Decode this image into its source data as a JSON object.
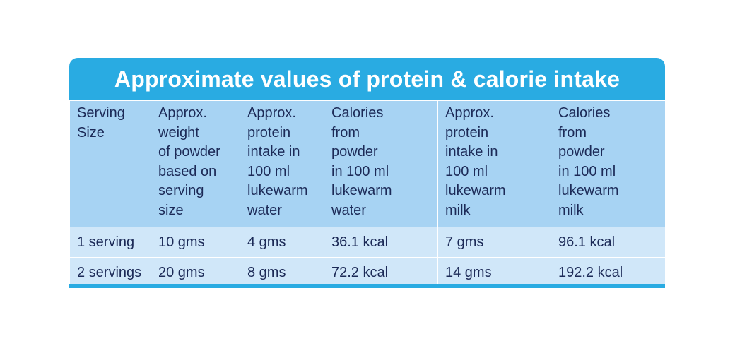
{
  "title": "Approximate values of protein & calorie intake",
  "colors": {
    "header_band": "#29abe2",
    "column_header_bg": "#a7d3f3",
    "row_bg": "#d0e7f9",
    "text": "#1c2a57"
  },
  "table": {
    "headers": [
      "Serving\nSize",
      "Approx.\nweight\nof powder\nbased on\nserving\nsize",
      "Approx.\nprotein\nintake in\n100 ml\nlukewarm\nwater",
      "Calories\nfrom\npowder\nin 100 ml\nlukewarm\nwater",
      "Approx.\nprotein\nintake in\n100 ml\nlukewarm\nmilk",
      "Calories\nfrom\npowder\nin 100 ml\nlukewarm\nmilk"
    ],
    "rows": [
      [
        "1 serving",
        "10 gms",
        "4 gms",
        "36.1 kcal",
        "7 gms",
        "96.1 kcal"
      ],
      [
        "2 servings",
        "20 gms",
        "8 gms",
        "72.2 kcal",
        "14 gms",
        "192.2 kcal"
      ]
    ]
  }
}
